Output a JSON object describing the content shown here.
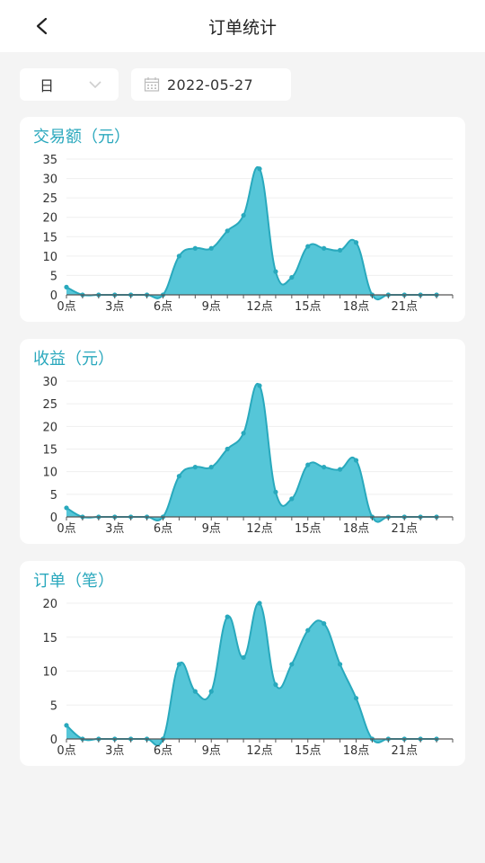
{
  "header": {
    "title": "订单统计"
  },
  "filters": {
    "period": "日",
    "date": "2022-05-27"
  },
  "colors": {
    "accent": "#2aa8bd",
    "fill": "#55c6d8",
    "line": "#29a9bd"
  },
  "chart_data": [
    {
      "type": "area",
      "title": "交易额（元）",
      "x": [
        0,
        1,
        2,
        3,
        4,
        5,
        6,
        7,
        8,
        9,
        10,
        11,
        12,
        13,
        14,
        15,
        16,
        17,
        18,
        19,
        20,
        21,
        22,
        23
      ],
      "x_ticks": [
        "0点",
        "3点",
        "6点",
        "9点",
        "12点",
        "15点",
        "18点",
        "21点"
      ],
      "y_ticks": [
        0,
        5,
        10,
        15,
        20,
        25,
        30,
        35
      ],
      "ylim": [
        0,
        35
      ],
      "values": [
        2,
        0,
        0,
        0,
        0,
        0,
        0,
        10,
        12,
        12,
        16.5,
        20.5,
        32.5,
        6,
        4.5,
        12.5,
        12,
        11.5,
        13.5,
        0,
        0,
        0,
        0,
        0
      ],
      "grid": true
    },
    {
      "type": "area",
      "title": "收益（元）",
      "x": [
        0,
        1,
        2,
        3,
        4,
        5,
        6,
        7,
        8,
        9,
        10,
        11,
        12,
        13,
        14,
        15,
        16,
        17,
        18,
        19,
        20,
        21,
        22,
        23
      ],
      "x_ticks": [
        "0点",
        "3点",
        "6点",
        "9点",
        "12点",
        "15点",
        "18点",
        "21点"
      ],
      "y_ticks": [
        0,
        5,
        10,
        15,
        20,
        25,
        30
      ],
      "ylim": [
        0,
        30
      ],
      "values": [
        2,
        0,
        0,
        0,
        0,
        0,
        0,
        9,
        11,
        11,
        15,
        18.5,
        29,
        5.5,
        4,
        11.5,
        11,
        10.5,
        12.5,
        0,
        0,
        0,
        0,
        0
      ],
      "grid": true
    },
    {
      "type": "area",
      "title": "订单（笔）",
      "x": [
        0,
        1,
        2,
        3,
        4,
        5,
        6,
        7,
        8,
        9,
        10,
        11,
        12,
        13,
        14,
        15,
        16,
        17,
        18,
        19,
        20,
        21,
        22,
        23
      ],
      "x_ticks": [
        "0点",
        "3点",
        "6点",
        "9点",
        "12点",
        "15点",
        "18点",
        "21点"
      ],
      "y_ticks": [
        0,
        5,
        10,
        15,
        20
      ],
      "ylim": [
        0,
        20
      ],
      "values": [
        2,
        0,
        0,
        0,
        0,
        0,
        0,
        11,
        7,
        7,
        18,
        12,
        20,
        8,
        11,
        16,
        17,
        11,
        6,
        0,
        0,
        0,
        0,
        0
      ],
      "grid": true
    }
  ]
}
